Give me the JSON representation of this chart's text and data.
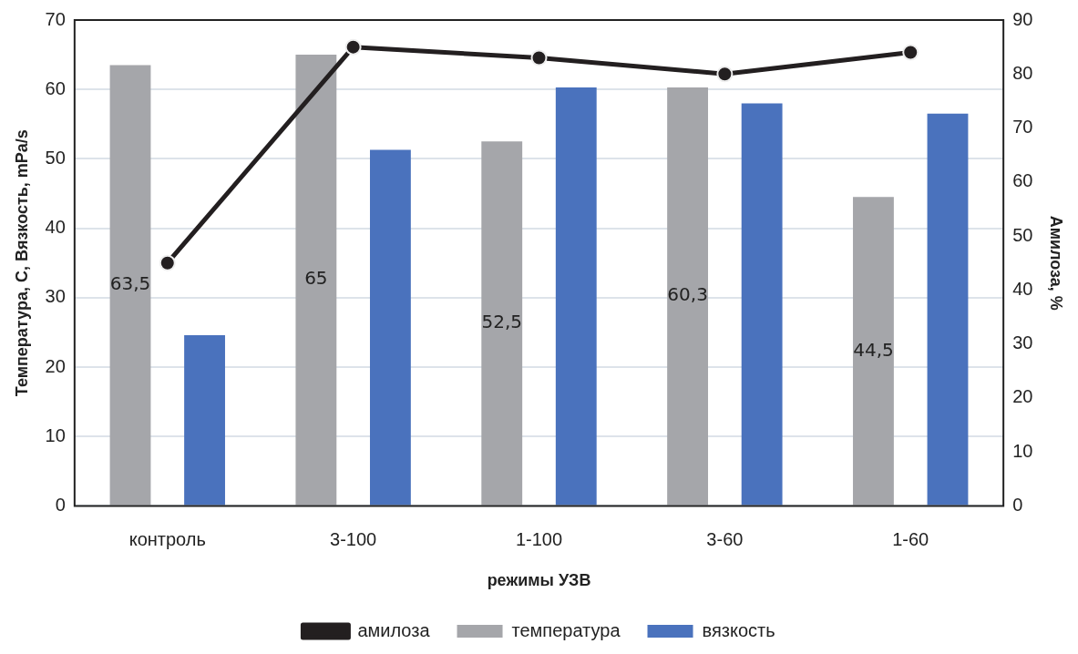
{
  "chart_data": {
    "type": "bar",
    "xlabel": "режимы УЗВ",
    "ylabel": "Температура, С, Вязкость, mPa/s",
    "y2label": "Амилоза, %",
    "categories": [
      "контроль",
      "3-100",
      "1-100",
      "3-60",
      "1-60"
    ],
    "series": [
      {
        "name": "температура",
        "color": "#a5a6aa",
        "values": [
          63.5,
          65,
          52.5,
          60.3,
          44.5
        ],
        "value_labels": [
          "63,5",
          "65",
          "52,5",
          "60,3",
          "44,5"
        ]
      },
      {
        "name": "вязкость",
        "color": "#4a72bd",
        "values": [
          24.6,
          51.3,
          60.3,
          58.0,
          56.5
        ]
      },
      {
        "name": "амилоза",
        "type": "line",
        "axis": "y2",
        "color": "#231f20",
        "values": [
          45,
          85,
          83,
          80,
          84
        ]
      }
    ],
    "ylim": [
      0,
      70
    ],
    "yticks": [
      0,
      10,
      20,
      30,
      40,
      50,
      60,
      70
    ],
    "y2lim": [
      0,
      90
    ],
    "y2ticks": [
      0,
      10,
      20,
      30,
      40,
      50,
      60,
      70,
      80,
      90
    ],
    "grid": "y",
    "legend": "bottom",
    "marker": "circle",
    "line_style": "solid"
  }
}
